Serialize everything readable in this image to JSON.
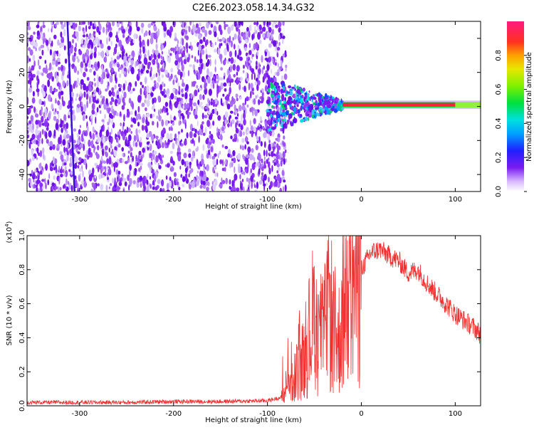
{
  "title": "C2E6.2023.058.14.34.G32",
  "colors": {
    "snr_line": "#f03030",
    "signal_band": "#ff2040",
    "speckle": "#7a1cf0",
    "speckle_light": "#d9c4ff",
    "background": "#ffffff"
  },
  "colorbar": {
    "label": "Normalized spectral amplitude",
    "ticks": [
      "0.0",
      "0.2",
      "0.4",
      "0.6",
      "0.8"
    ],
    "tick_values": [
      0.0,
      0.2,
      0.4,
      0.6,
      0.8
    ],
    "range": [
      0,
      1
    ],
    "colormap": "rainbow-with-white-low"
  },
  "chart_data": [
    {
      "type": "heatmap",
      "xlabel": "Height of straight line (km)",
      "ylabel": "Frequency (Hz)",
      "xlim": [
        -356,
        127
      ],
      "ylim": [
        -50,
        50
      ],
      "xticks": [
        -300,
        -200,
        -100,
        0,
        100
      ],
      "xtick_labels": [
        "-300",
        "-200",
        "-100",
        "0",
        "100"
      ],
      "yticks": [
        -40,
        -20,
        0,
        20,
        40
      ],
      "ytick_labels": [
        "-40",
        "-20",
        "0",
        "20",
        "40"
      ],
      "noise_region_x": [
        -356,
        -80
      ],
      "signal_frequency_hz": 1,
      "signal_band_x": [
        -20,
        127
      ],
      "turbulent_region_x": [
        -100,
        -20
      ]
    },
    {
      "type": "line",
      "xlabel": "Height of straight line (km)",
      "ylabel": "SNR (10 * v/v)",
      "scale_label": "(x10",
      "scale_exp": "4",
      "scale_close": ")",
      "xlim": [
        -356,
        127
      ],
      "ylim": [
        0,
        1.0
      ],
      "xticks": [
        -300,
        -200,
        -100,
        0,
        100
      ],
      "xtick_labels": [
        "-300",
        "-200",
        "-100",
        "0",
        "100"
      ],
      "yticks": [
        0.0,
        0.2,
        0.4,
        0.6,
        0.8,
        1.0
      ],
      "ytick_labels": [
        "0.0",
        "0.2",
        "0.4",
        "0.6",
        "0.8",
        "1.0"
      ],
      "series": [
        {
          "x": [
            -356,
            -300,
            -250,
            -200,
            -150,
            -100,
            -85,
            -75,
            -60,
            -50,
            -45,
            -40,
            -35,
            -30,
            -25,
            -20,
            -15,
            -10,
            -5,
            0,
            10,
            20,
            30,
            40,
            50,
            60,
            70,
            80,
            90,
            100,
            110,
            120,
            127
          ],
          "y": [
            0.02,
            0.02,
            0.02,
            0.025,
            0.025,
            0.03,
            0.05,
            0.12,
            0.3,
            0.55,
            0.45,
            0.4,
            0.62,
            0.5,
            0.35,
            0.55,
            0.7,
            0.72,
            0.78,
            0.8,
            0.9,
            0.92,
            0.88,
            0.85,
            0.78,
            0.8,
            0.72,
            0.66,
            0.6,
            0.54,
            0.5,
            0.46,
            0.42
          ]
        }
      ]
    }
  ]
}
